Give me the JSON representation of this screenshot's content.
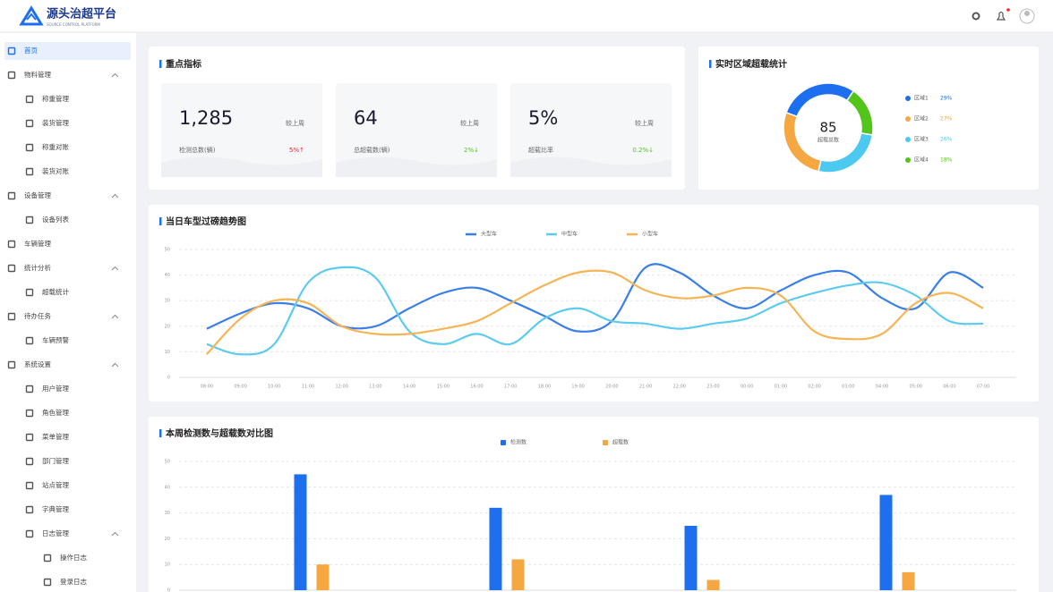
{
  "header": {
    "title": "源头治超平台",
    "subtitle": "SOURCE CONTROL PLATFORM"
  },
  "sidebar": {
    "menu": [
      {
        "label": "首页",
        "active": true
      },
      {
        "label": "物料管理",
        "children": [
          {
            "label": "称重管理"
          },
          {
            "label": "装货管理"
          },
          {
            "label": "称重对账"
          },
          {
            "label": "装货对账"
          }
        ]
      },
      {
        "label": "设备管理",
        "children": [
          {
            "label": "设备列表"
          }
        ]
      },
      {
        "label": "车辆管理"
      },
      {
        "label": "统计分析",
        "children": [
          {
            "label": "超载统计"
          }
        ]
      },
      {
        "label": "待办任务",
        "children": [
          {
            "label": "车辆预警"
          }
        ]
      },
      {
        "label": "系统设置",
        "children": [
          {
            "label": "用户管理"
          },
          {
            "label": "角色管理"
          },
          {
            "label": "菜单管理"
          },
          {
            "label": "部门管理"
          },
          {
            "label": "站点管理"
          },
          {
            "label": "字典管理"
          },
          {
            "label": "日志管理",
            "children": [
              {
                "label": "操作日志"
              },
              {
                "label": "登录日志"
              }
            ]
          }
        ]
      }
    ]
  },
  "kpi": {
    "title": "重点指标",
    "cards": [
      {
        "value": "1,285",
        "compare": "较上周",
        "label": "检测总数(辆)",
        "change": "5%↑",
        "color": "#f5222d"
      },
      {
        "value": "64",
        "compare": "较上周",
        "label": "总超载数(辆)",
        "change": "2%↓",
        "color": "#52c41a"
      },
      {
        "value": "5%",
        "compare": "较上周",
        "label": "超载比率",
        "change": "0.2%↓",
        "color": "#52c41a"
      }
    ]
  },
  "chart_data": [
    {
      "type": "donut",
      "title": "实时区域超载统计",
      "total": 85,
      "total_label": "超载总数",
      "categories": [
        "区域1",
        "区域2",
        "区域3",
        "区域4"
      ],
      "values": [
        29,
        27,
        26,
        18
      ],
      "value_labels": [
        "29%",
        "27%",
        "26%",
        "18%"
      ],
      "colors": [
        "#1e6ff0",
        "#f5a742",
        "#4cc9f0",
        "#52c41a"
      ]
    },
    {
      "type": "line",
      "title": "当日车型过磅趋势图",
      "smooth": true,
      "grid": true,
      "categories": [
        "08:00",
        "09:00",
        "10:00",
        "11:00",
        "12:00",
        "13:00",
        "14:00",
        "15:00",
        "16:00",
        "17:00",
        "18:00",
        "19:00",
        "20:00",
        "21:00",
        "22:00",
        "23:00",
        "00:00",
        "01:00",
        "02:00",
        "03:00",
        "04:00",
        "05:00",
        "06:00",
        "07:00"
      ],
      "series": [
        {
          "name": "大型车",
          "color": "#3a7ee8",
          "values": [
            19,
            25,
            29,
            27,
            20,
            20,
            27,
            33,
            35,
            30,
            24,
            18,
            22,
            43,
            41,
            32,
            27,
            34,
            40,
            41,
            31,
            27,
            41,
            35
          ]
        },
        {
          "name": "中型车",
          "color": "#5ccbef",
          "values": [
            13,
            9,
            13,
            37,
            43,
            39,
            18,
            13,
            17,
            13,
            23,
            27,
            22,
            21,
            19,
            21,
            23,
            29,
            33,
            36,
            37,
            32,
            22,
            21
          ]
        },
        {
          "name": "小型车",
          "color": "#f5b556",
          "values": [
            9,
            23,
            30,
            29,
            20,
            17,
            17,
            19,
            22,
            29,
            36,
            41,
            41,
            34,
            31,
            32,
            35,
            32,
            18,
            15,
            17,
            29,
            33,
            27
          ]
        }
      ],
      "ylim": [
        0,
        50
      ],
      "yticks": [
        0,
        10,
        20,
        30,
        40,
        50
      ]
    },
    {
      "type": "bar",
      "title": "本周检测数与超载数对比图",
      "grid": true,
      "categories": [
        null,
        null,
        null,
        null
      ],
      "series": [
        {
          "name": "检测数",
          "color": "#1e6ff0",
          "values": [
            45,
            32,
            25,
            37
          ]
        },
        {
          "name": "超载数",
          "color": "#f5a742",
          "values": [
            10,
            12,
            4,
            7
          ]
        }
      ],
      "ylim": [
        0,
        50
      ],
      "yticks": [
        0,
        10,
        20,
        30,
        40,
        50
      ]
    }
  ]
}
